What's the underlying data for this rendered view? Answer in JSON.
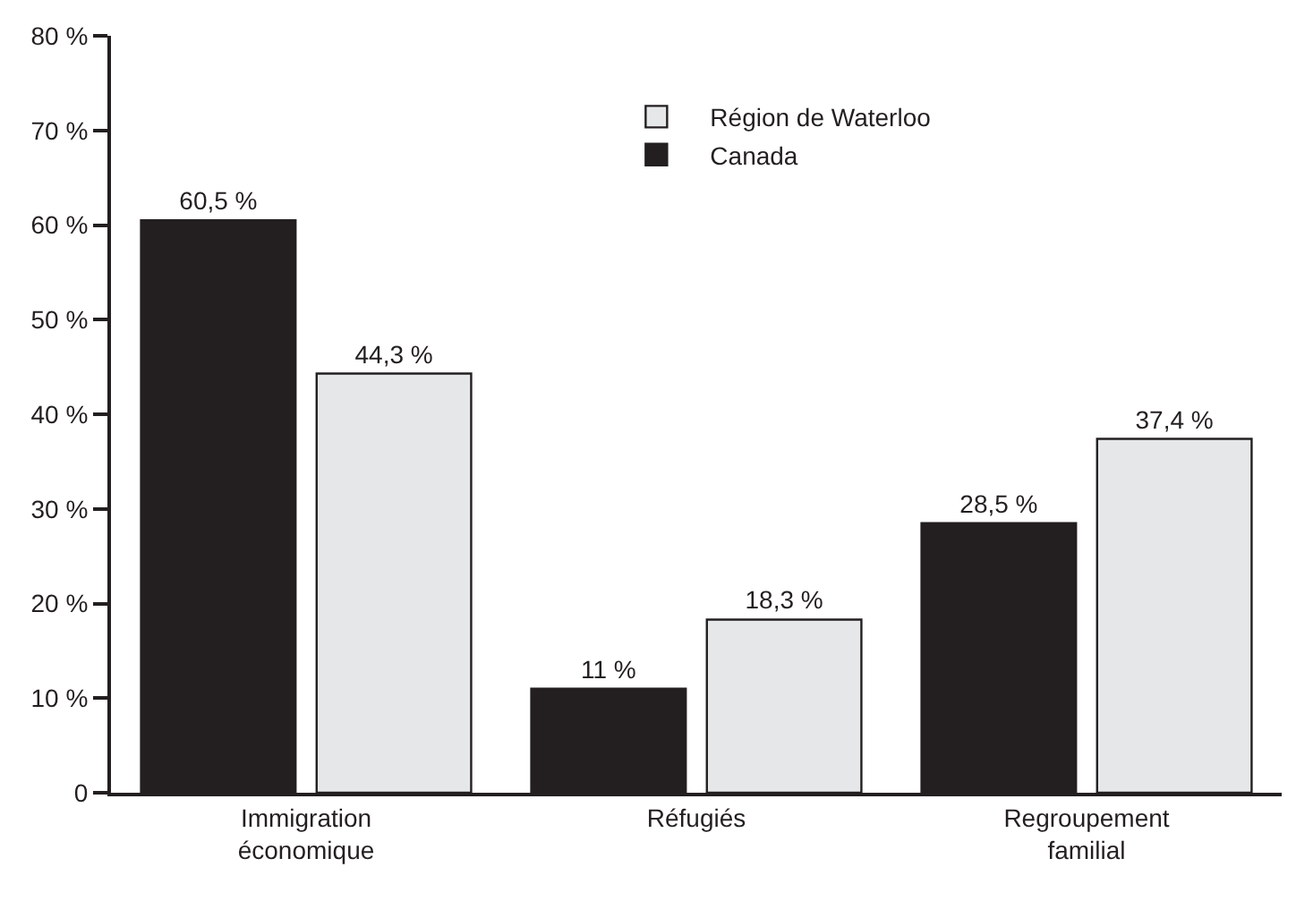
{
  "chart_data": {
    "type": "bar",
    "categories": [
      "Immigration économique",
      "Réfugiés",
      "Regroupement familial"
    ],
    "series": [
      {
        "name": "Canada",
        "color": "#231f20",
        "values": [
          60.5,
          11,
          28.5
        ],
        "value_labels": [
          "60,5 %",
          "11 %",
          "28,5 %"
        ]
      },
      {
        "name": "Région de Waterloo",
        "color": "#e6e7e8",
        "values": [
          44.3,
          18.3,
          37.4
        ],
        "value_labels": [
          "44,3 %",
          "18,3 %",
          "37,4 %"
        ]
      }
    ],
    "ylim": [
      0,
      80
    ],
    "yticks": [
      0,
      {
        "value": 10,
        "label": "10 %"
      },
      {
        "value": 20,
        "label": "20 %"
      },
      {
        "value": 30,
        "label": "30 %"
      },
      {
        "value": 40,
        "label": "40 %"
      },
      {
        "value": 50,
        "label": "50 %"
      },
      {
        "value": 60,
        "label": "60 %"
      },
      {
        "value": 70,
        "label": "70 %"
      },
      {
        "value": 80,
        "label": "80 %"
      }
    ],
    "grid": false,
    "legend": "top"
  }
}
